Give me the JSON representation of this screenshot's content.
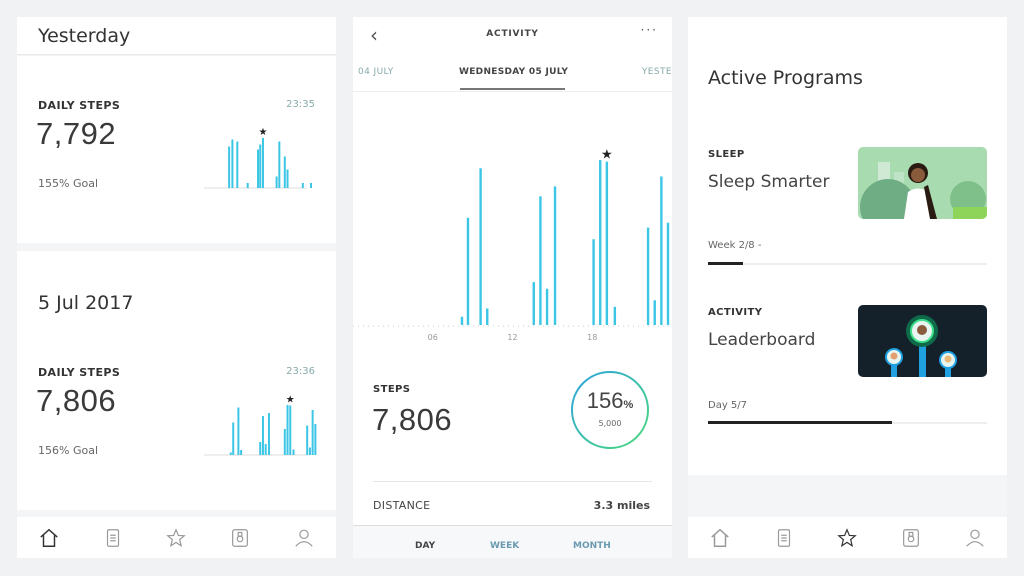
{
  "left": {
    "header_title": "Yesterday",
    "card1": {
      "label": "DAILY STEPS",
      "time": "23:35",
      "steps": "7,792",
      "goal": "155% Goal",
      "bars": [
        {
          "hour": 7.9,
          "value": 83
        },
        {
          "hour": 8.5,
          "value": 97
        },
        {
          "hour": 9.4,
          "value": 93
        },
        {
          "hour": 11.3,
          "value": 10
        },
        {
          "hour": 13.2,
          "value": 77
        },
        {
          "hour": 13.6,
          "value": 87
        },
        {
          "hour": 14.1,
          "value": 100,
          "star": true
        },
        {
          "hour": 16.6,
          "value": 23
        },
        {
          "hour": 17.1,
          "value": 93
        },
        {
          "hour": 18.1,
          "value": 63
        },
        {
          "hour": 18.6,
          "value": 37
        },
        {
          "hour": 21.4,
          "value": 10
        },
        {
          "hour": 22.9,
          "value": 10
        }
      ]
    },
    "date_title": "5 Jul 2017",
    "card2": {
      "label": "DAILY STEPS",
      "time": "23:36",
      "steps": "7,806",
      "goal": "156% Goal"
    }
  },
  "middle": {
    "title": "ACTIVITY",
    "back_icon": "chevron-left-icon",
    "more_icon": "ellipsis-icon",
    "date_tabs": [
      "04 JULY",
      "WEDNESDAY 05 JULY",
      "YESTE"
    ],
    "chart_data": {
      "type": "bar",
      "x_ticks": [
        "06",
        "12",
        "18"
      ],
      "xlim": [
        0,
        24
      ],
      "bars": [
        {
          "hour": 8.2,
          "value": 5
        },
        {
          "hour": 8.65,
          "value": 65
        },
        {
          "hour": 9.6,
          "value": 95
        },
        {
          "hour": 10.1,
          "value": 10
        },
        {
          "hour": 13.6,
          "value": 26
        },
        {
          "hour": 14.1,
          "value": 78
        },
        {
          "hour": 14.6,
          "value": 22
        },
        {
          "hour": 15.2,
          "value": 84
        },
        {
          "hour": 18.1,
          "value": 52
        },
        {
          "hour": 18.6,
          "value": 100
        },
        {
          "hour": 19.1,
          "value": 99,
          "star": true
        },
        {
          "hour": 19.7,
          "value": 11
        },
        {
          "hour": 22.2,
          "value": 59
        },
        {
          "hour": 22.7,
          "value": 15
        },
        {
          "hour": 23.2,
          "value": 90
        },
        {
          "hour": 23.7,
          "value": 62
        }
      ]
    },
    "steps_label": "STEPS",
    "steps": "7,806",
    "goal_percent": "156",
    "percent_sign": "%",
    "goal_target": "5,000",
    "distance_label": "DISTANCE",
    "distance": "3.3 miles",
    "period_tabs": [
      "DAY",
      "WEEK",
      "MONTH"
    ]
  },
  "right": {
    "title": "Active Programs",
    "programs": [
      {
        "category": "SLEEP",
        "name": "Sleep Smarter",
        "progress_label": "Week 2/8 -",
        "progress": 0.125
      },
      {
        "category": "ACTIVITY",
        "name": "Leaderboard",
        "progress_label": "Day 5/7",
        "progress": 0.66
      }
    ]
  },
  "nav_icons": [
    "home-icon",
    "timeline-icon",
    "programs-star-icon",
    "device-watch-icon",
    "profile-icon"
  ],
  "colors": {
    "accent": "#3cc6e6",
    "ring_start": "#2aa3e0",
    "ring_end": "#4cd97a"
  }
}
